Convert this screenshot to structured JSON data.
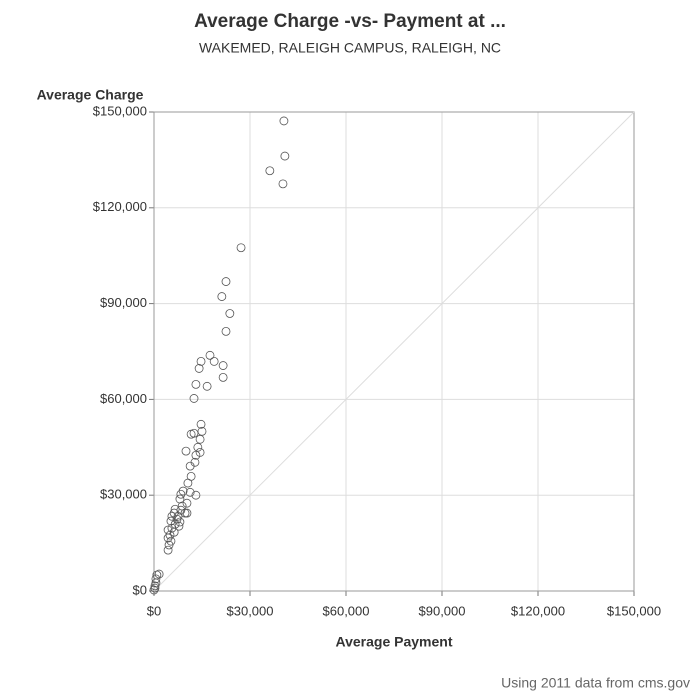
{
  "chart_data": {
    "type": "scatter",
    "title": "Average Charge -vs- Payment at ...",
    "subtitle": "WAKEMED, RALEIGH CAMPUS, RALEIGH, NC",
    "x_label": "Average Payment",
    "y_label": "Average Charge",
    "footnote": "Using 2011 data from cms.gov",
    "color": "#555555",
    "grid": true,
    "reference_line": true,
    "xlim": [
      0,
      150000
    ],
    "ylim": [
      0,
      150000
    ],
    "xticks": [
      {
        "value": 0,
        "label": "$0"
      },
      {
        "value": 30000,
        "label": "$30,000"
      },
      {
        "value": 60000,
        "label": "$60,000"
      },
      {
        "value": 90000,
        "label": "$90,000"
      },
      {
        "value": 120000,
        "label": "$120,000"
      },
      {
        "value": 150000,
        "label": "$150,000"
      }
    ],
    "yticks": [
      {
        "value": 0,
        "label": "$0"
      },
      {
        "value": 30000,
        "label": "$30,000"
      },
      {
        "value": 60000,
        "label": "$60,000"
      },
      {
        "value": 90000,
        "label": "$90,000"
      },
      {
        "value": 120000,
        "label": "$120,000"
      },
      {
        "value": 150000,
        "label": "$150,000"
      }
    ],
    "x": [
      40600,
      40900,
      36200,
      40300,
      27200,
      22500,
      21200,
      23700,
      22500,
      17500,
      14700,
      18800,
      21600,
      14100,
      21600,
      13100,
      16600,
      12500,
      14700,
      15000,
      12500,
      11600,
      14400,
      13700,
      14400,
      10000,
      13100,
      12800,
      11300,
      11600,
      10600,
      11300,
      9100,
      13100,
      8400,
      8100,
      10300,
      8800,
      6600,
      8400,
      9700,
      10300,
      6300,
      7500,
      5600,
      7200,
      8100,
      5300,
      6600,
      7800,
      5600,
      4400,
      6300,
      5000,
      4400,
      5300,
      4700,
      4400,
      900,
      1600,
      600,
      600,
      300,
      0,
      300
    ],
    "values": [
      147200,
      136200,
      131600,
      127500,
      107500,
      96900,
      92200,
      86900,
      81300,
      73800,
      71900,
      71900,
      70600,
      69700,
      66900,
      64700,
      64100,
      60300,
      52200,
      50000,
      49400,
      49100,
      47500,
      45000,
      43400,
      43800,
      42500,
      40300,
      39100,
      35900,
      33800,
      30900,
      31300,
      30000,
      30300,
      28800,
      27500,
      26600,
      25600,
      25300,
      24400,
      24400,
      24400,
      23400,
      23400,
      22500,
      21600,
      21900,
      20900,
      20300,
      19700,
      19100,
      18400,
      17500,
      16600,
      15600,
      14400,
      12800,
      5000,
      5300,
      3800,
      2500,
      900,
      300,
      1600
    ]
  }
}
